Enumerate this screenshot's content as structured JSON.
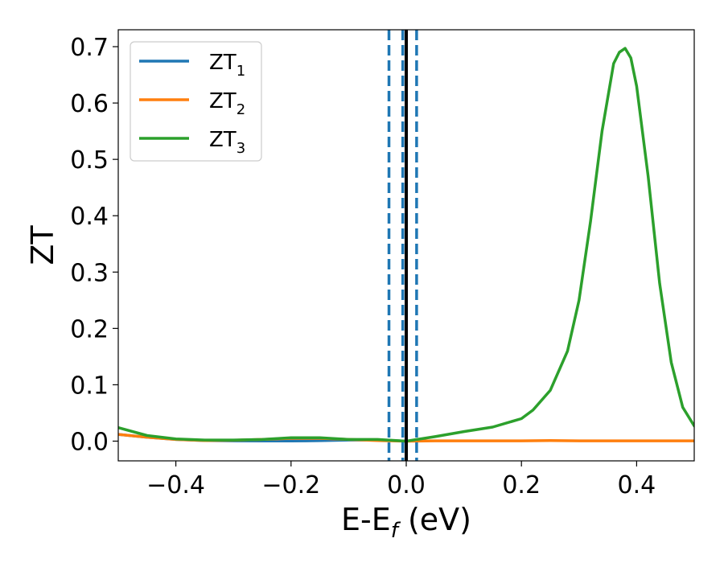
{
  "chart_data": {
    "type": "line",
    "xlabel": "E-E",
    "xlabel_sub": "f",
    "xlabel_unit": " (eV)",
    "ylabel": "ZT",
    "xlim": [
      -0.5,
      0.5
    ],
    "ylim": [
      -0.035,
      0.73
    ],
    "x_ticks": [
      -0.4,
      -0.2,
      0.0,
      0.2,
      0.4
    ],
    "x_tick_labels": [
      "−0.4",
      "−0.2",
      "0.0",
      "0.2",
      "0.4"
    ],
    "y_ticks": [
      0.0,
      0.1,
      0.2,
      0.3,
      0.4,
      0.5,
      0.6,
      0.7
    ],
    "y_tick_labels": [
      "0.0",
      "0.1",
      "0.2",
      "0.3",
      "0.4",
      "0.5",
      "0.6",
      "0.7"
    ],
    "grid": false,
    "legend_position": "top-left",
    "vlines": [
      {
        "x": 0.0,
        "color": "#000000",
        "style": "solid"
      },
      {
        "x": -0.03,
        "color": "#1f77b4",
        "style": "dashed"
      },
      {
        "x": -0.006,
        "color": "#1f77b4",
        "style": "dashed"
      },
      {
        "x": 0.018,
        "color": "#1f77b4",
        "style": "dashed"
      }
    ],
    "series": [
      {
        "name": "ZT",
        "name_sub": "1",
        "color": "#1f77b4",
        "x": [
          -0.5,
          -0.45,
          -0.4,
          -0.35,
          -0.3,
          -0.25,
          -0.2,
          -0.15,
          -0.1,
          -0.05,
          0.0
        ],
        "y": [
          0.012,
          0.007,
          0.003,
          0.001,
          0.0005,
          0.0003,
          0.0003,
          0.0008,
          0.002,
          0.002,
          0.0
        ]
      },
      {
        "name": "ZT",
        "name_sub": "2",
        "color": "#ff7f0e",
        "x": [
          -0.5,
          -0.45,
          -0.4,
          -0.35,
          -0.3,
          -0.25,
          -0.2,
          -0.15,
          -0.1,
          -0.05,
          0.0,
          0.05,
          0.1,
          0.15,
          0.2,
          0.25,
          0.3,
          0.35,
          0.4,
          0.45,
          0.5
        ],
        "y": [
          0.012,
          0.007,
          0.003,
          0.001,
          0.0015,
          0.003,
          0.005,
          0.005,
          0.003,
          0.001,
          0.0,
          0.0005,
          0.0005,
          0.0005,
          0.0005,
          0.001,
          0.0005,
          0.0005,
          0.0005,
          0.0005,
          0.0005
        ]
      },
      {
        "name": "ZT",
        "name_sub": "3",
        "color": "#2ca02c",
        "x": [
          -0.5,
          -0.45,
          -0.4,
          -0.35,
          -0.3,
          -0.25,
          -0.2,
          -0.15,
          -0.1,
          -0.05,
          0.0,
          0.05,
          0.1,
          0.15,
          0.2,
          0.22,
          0.25,
          0.28,
          0.3,
          0.32,
          0.34,
          0.36,
          0.37,
          0.38,
          0.39,
          0.4,
          0.42,
          0.44,
          0.46,
          0.48,
          0.5
        ],
        "y": [
          0.024,
          0.01,
          0.004,
          0.002,
          0.002,
          0.003,
          0.006,
          0.006,
          0.003,
          0.003,
          0.0,
          0.008,
          0.017,
          0.025,
          0.04,
          0.055,
          0.09,
          0.16,
          0.25,
          0.39,
          0.55,
          0.67,
          0.69,
          0.697,
          0.68,
          0.63,
          0.47,
          0.28,
          0.14,
          0.06,
          0.027
        ]
      }
    ]
  }
}
